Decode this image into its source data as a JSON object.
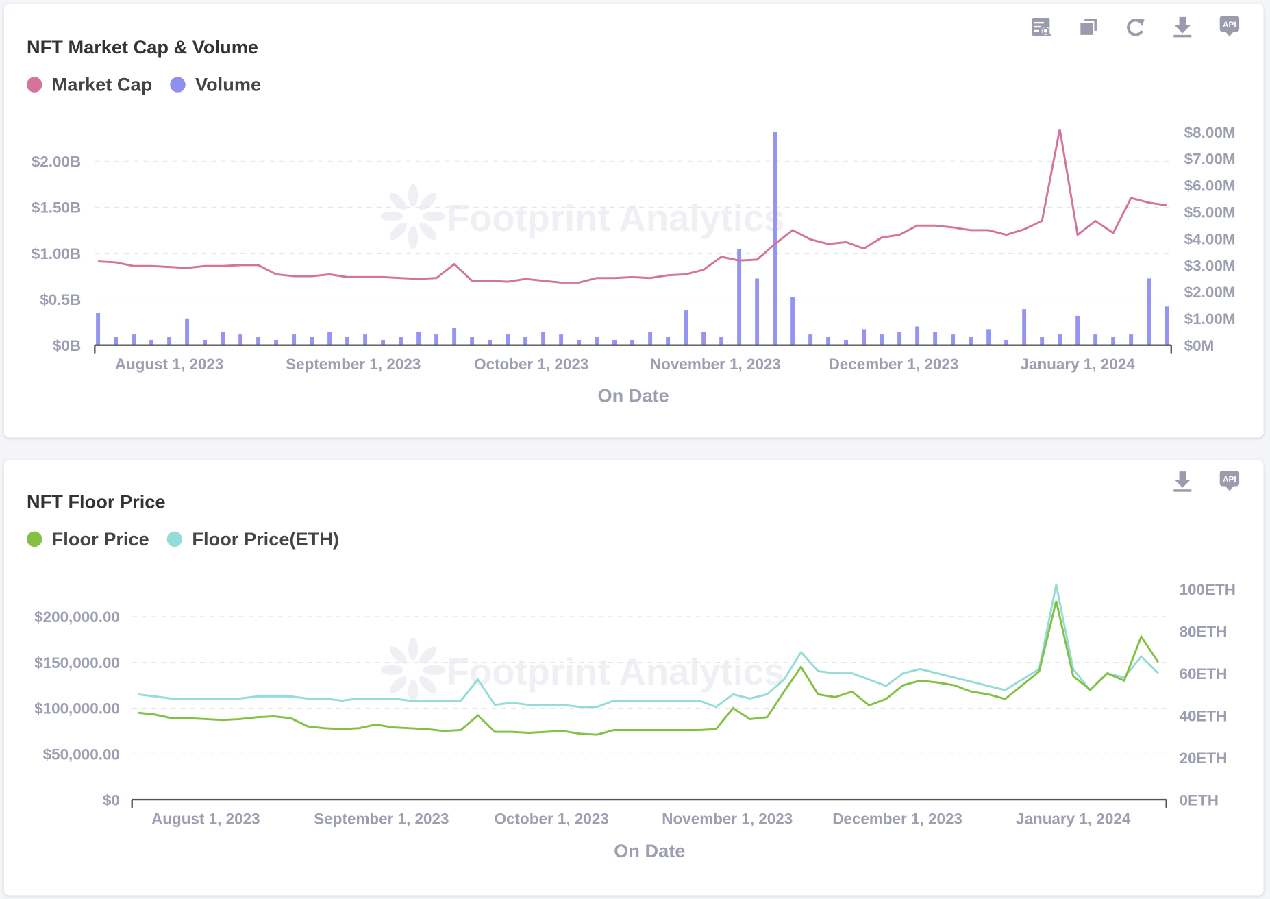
{
  "cards": [
    {
      "title": "NFT Market Cap & Volume",
      "legend": [
        "Market Cap",
        "Volume"
      ],
      "toolbar": [
        "table-search",
        "duplicate",
        "refresh",
        "download",
        "api"
      ]
    },
    {
      "title": "NFT Floor Price",
      "legend": [
        "Floor Price",
        "Floor Price(ETH)"
      ],
      "toolbar": [
        "download",
        "api"
      ]
    }
  ],
  "api_label": "API",
  "watermark": "Footprint Analytics",
  "colors": {
    "market_cap": "#d4739c",
    "volume": "#9494f2",
    "floor_price": "#84c044",
    "floor_price_eth": "#93dcd8"
  },
  "chart_data": [
    {
      "type": "bar+line",
      "title": "NFT Market Cap & Volume",
      "xlabel": "On Date",
      "x_start": "2023-07-20",
      "x_step_days": 3,
      "x_ticks": [
        {
          "label": "August 1, 2023",
          "day": 12
        },
        {
          "label": "September 1, 2023",
          "day": 43
        },
        {
          "label": "October 1, 2023",
          "day": 73
        },
        {
          "label": "November 1, 2023",
          "day": 104
        },
        {
          "label": "December 1, 2023",
          "day": 134
        },
        {
          "label": "January 1, 2024",
          "day": 165
        }
      ],
      "y_left": {
        "ticks": [
          {
            "v": 0,
            "label": "$0B"
          },
          {
            "v": 0.5,
            "label": "$0.5B"
          },
          {
            "v": 1,
            "label": "$1.00B"
          },
          {
            "v": 1.5,
            "label": "$1.50B"
          },
          {
            "v": 2,
            "label": "$2.00B"
          }
        ],
        "unit": "B USD"
      },
      "y_right": {
        "ticks": [
          {
            "v": 0,
            "label": "$0M"
          },
          {
            "v": 1,
            "label": "$1.00M"
          },
          {
            "v": 2,
            "label": "$2.00M"
          },
          {
            "v": 3,
            "label": "$3.00M"
          },
          {
            "v": 4,
            "label": "$4.00M"
          },
          {
            "v": 5,
            "label": "$5.00M"
          },
          {
            "v": 6,
            "label": "$6.00M"
          },
          {
            "v": 7,
            "label": "$7.00M"
          },
          {
            "v": 8,
            "label": "$8.00M"
          }
        ],
        "unit": "M USD"
      },
      "series": [
        {
          "name": "Market Cap",
          "axis": "left",
          "type": "line",
          "values": [
            0.91,
            0.9,
            0.86,
            0.86,
            0.85,
            0.84,
            0.86,
            0.86,
            0.87,
            0.87,
            0.77,
            0.75,
            0.75,
            0.77,
            0.74,
            0.74,
            0.74,
            0.73,
            0.72,
            0.73,
            0.88,
            0.7,
            0.7,
            0.69,
            0.72,
            0.7,
            0.68,
            0.68,
            0.73,
            0.73,
            0.74,
            0.73,
            0.76,
            0.77,
            0.82,
            0.96,
            0.92,
            0.93,
            1.1,
            1.25,
            1.15,
            1.1,
            1.12,
            1.05,
            1.17,
            1.2,
            1.3,
            1.3,
            1.28,
            1.25,
            1.25,
            1.2,
            1.26,
            1.35,
            2.35,
            1.2,
            1.35,
            1.22,
            1.6,
            1.55,
            1.52
          ]
        },
        {
          "name": "Volume",
          "axis": "right",
          "type": "bar",
          "values": [
            1.2,
            0.3,
            0.4,
            0.2,
            0.3,
            1.0,
            0.2,
            0.5,
            0.4,
            0.3,
            0.2,
            0.4,
            0.3,
            0.5,
            0.3,
            0.4,
            0.2,
            0.3,
            0.5,
            0.4,
            0.65,
            0.3,
            0.2,
            0.4,
            0.3,
            0.5,
            0.4,
            0.2,
            0.3,
            0.2,
            0.2,
            0.5,
            0.3,
            1.3,
            0.5,
            0.3,
            3.6,
            2.5,
            8.0,
            1.8,
            0.4,
            0.3,
            0.2,
            0.6,
            0.4,
            0.5,
            0.7,
            0.5,
            0.4,
            0.3,
            0.6,
            0.2,
            1.35,
            0.3,
            0.4,
            1.1,
            0.4,
            0.3,
            0.4,
            2.5,
            1.45
          ]
        }
      ]
    },
    {
      "type": "line",
      "title": "NFT Floor Price",
      "xlabel": "On Date",
      "x_start": "2023-07-20",
      "x_step_days": 3,
      "x_ticks": [
        {
          "label": "August 1, 2023",
          "day": 12
        },
        {
          "label": "September 1, 2023",
          "day": 43
        },
        {
          "label": "October 1, 2023",
          "day": 73
        },
        {
          "label": "November 1, 2023",
          "day": 104
        },
        {
          "label": "December 1, 2023",
          "day": 134
        },
        {
          "label": "January 1, 2024",
          "day": 165
        }
      ],
      "y_left": {
        "ticks": [
          {
            "v": 0,
            "label": "$0"
          },
          {
            "v": 50,
            "label": "$50,000.00"
          },
          {
            "v": 100,
            "label": "$100,000.00"
          },
          {
            "v": 150,
            "label": "$150,000.00"
          },
          {
            "v": 200,
            "label": "$200,000.00"
          }
        ],
        "unit": "k USD"
      },
      "y_right": {
        "ticks": [
          {
            "v": 0,
            "label": "0ETH"
          },
          {
            "v": 20,
            "label": "20ETH"
          },
          {
            "v": 40,
            "label": "40ETH"
          },
          {
            "v": 60,
            "label": "60ETH"
          },
          {
            "v": 80,
            "label": "80ETH"
          },
          {
            "v": 100,
            "label": "100ETH"
          }
        ],
        "unit": "ETH"
      },
      "series": [
        {
          "name": "Floor Price",
          "axis": "left",
          "values": [
            95,
            93,
            89,
            89,
            88,
            87,
            88,
            90,
            91,
            89,
            80,
            78,
            77,
            78,
            82,
            79,
            78,
            77,
            75,
            76,
            92,
            74,
            74,
            73,
            74,
            75,
            72,
            71,
            76,
            76,
            76,
            76,
            76,
            76,
            77,
            100,
            88,
            90,
            118,
            145,
            115,
            112,
            118,
            103,
            110,
            125,
            130,
            128,
            125,
            118,
            115,
            110,
            125,
            140,
            217,
            135,
            120,
            138,
            130,
            178,
            150
          ]
        },
        {
          "name": "Floor Price(ETH)",
          "axis": "right",
          "values": [
            50,
            49,
            48,
            48,
            48,
            48,
            48,
            49,
            49,
            49,
            48,
            48,
            47,
            48,
            48,
            48,
            47,
            47,
            47,
            47,
            57,
            45,
            46,
            45,
            45,
            45,
            44,
            44,
            47,
            47,
            47,
            47,
            47,
            47,
            44,
            50,
            48,
            50,
            57,
            70,
            61,
            60,
            60,
            57,
            54,
            60,
            62,
            60,
            58,
            56,
            54,
            52,
            57,
            62,
            102,
            62,
            52,
            60,
            58,
            68,
            60
          ]
        }
      ]
    }
  ]
}
